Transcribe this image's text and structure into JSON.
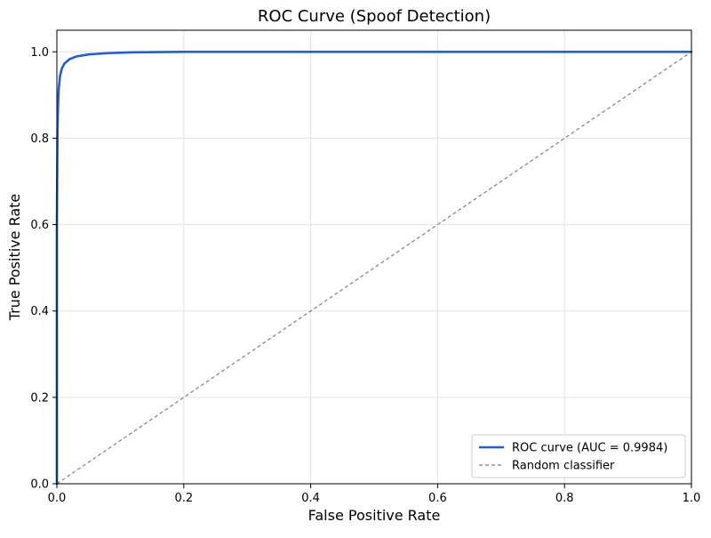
{
  "chart_data": {
    "type": "line",
    "title": "ROC Curve (Spoof Detection)",
    "xlabel": "False Positive Rate",
    "ylabel": "True Positive Rate",
    "xlim": [
      0.0,
      1.0
    ],
    "ylim": [
      0.0,
      1.05
    ],
    "xticks": [
      "0.0",
      "0.2",
      "0.4",
      "0.6",
      "0.8",
      "1.0"
    ],
    "yticks": [
      "0.0",
      "0.2",
      "0.4",
      "0.6",
      "0.8",
      "1.0"
    ],
    "grid": true,
    "legend_position": "bottom-right",
    "series": [
      {
        "name": "ROC curve (AUC = 0.9984)",
        "color": "#1f5fdc",
        "style": "solid",
        "x": [
          0.0,
          0.0,
          0.001,
          0.002,
          0.003,
          0.005,
          0.008,
          0.012,
          0.02,
          0.03,
          0.05,
          0.08,
          0.12,
          0.2,
          0.4,
          0.6,
          0.8,
          1.0
        ],
        "y": [
          0.0,
          0.6,
          0.82,
          0.88,
          0.915,
          0.945,
          0.962,
          0.973,
          0.983,
          0.989,
          0.994,
          0.997,
          0.999,
          1.0,
          1.0,
          1.0,
          1.0,
          1.0
        ]
      },
      {
        "name": "Random classifier",
        "color": "#808080",
        "style": "dashed",
        "x": [
          0.0,
          1.0
        ],
        "y": [
          0.0,
          1.0
        ]
      }
    ]
  }
}
